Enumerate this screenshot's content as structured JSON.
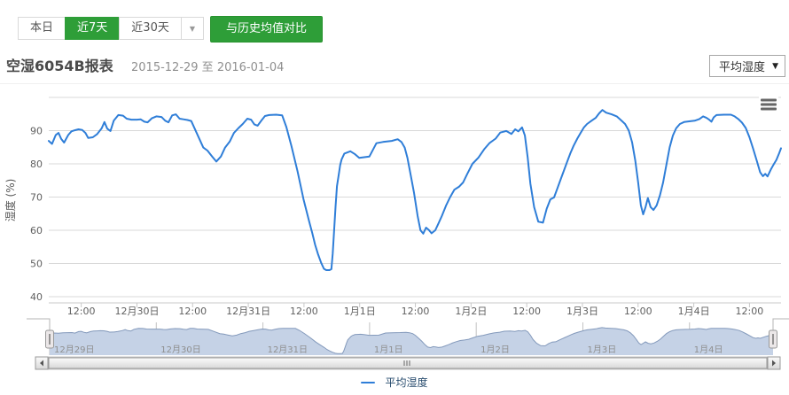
{
  "toolbar": {
    "range_buttons": [
      {
        "label": "本日",
        "active": false
      },
      {
        "label": "近7天",
        "active": true
      },
      {
        "label": "近30天",
        "active": false
      }
    ],
    "dropdown_caret": "▼",
    "compare_button": "与历史均值对比"
  },
  "header": {
    "title": "空湿6054B报表",
    "date_range": "2015-12-29 至 2016-01-04",
    "metric_select": {
      "value": "平均湿度",
      "caret": "▼"
    }
  },
  "icons": {
    "export_menu": "hamburger-bars",
    "scroll_left_arrow": "left-triangle",
    "scroll_right_arrow": "right-triangle"
  },
  "colors": {
    "accent_green": "#2e9e38",
    "series_line": "#2f7ed8",
    "navigator_fill": "#c5d2e6",
    "navigator_line": "#8399bb",
    "grid": "#d8d8d8",
    "axis_line": "#c8c8c8",
    "axis_label": "#606060",
    "legend_text": "#274b6d"
  },
  "chart": {
    "y_axis_title": "湿度 (%)",
    "y_ticks": [
      90,
      80,
      70,
      60,
      50,
      40
    ],
    "y_grid_top_value": 100,
    "x_labels": [
      "12:00",
      "12月30日",
      "12:00",
      "12月31日",
      "12:00",
      "1月1日",
      "12:00",
      "1月2日",
      "12:00",
      "1月3日",
      "12:00",
      "1月4日",
      "12:00"
    ],
    "navigator_labels": [
      "12月29日",
      "12月30日",
      "12月31日",
      "1月1日",
      "1月2日",
      "1月3日",
      "1月4日"
    ],
    "legend": {
      "label": "平均湿度"
    }
  },
  "chart_data": {
    "type": "line",
    "title": "空湿6054B报表",
    "ylabel": "湿度 (%)",
    "ylim": [
      40,
      100
    ],
    "yticks": [
      40,
      50,
      60,
      70,
      80,
      90
    ],
    "x_unit": "hours since 2015-12-29 00:00",
    "x_range": "2015-12-29 至 2016-01-04",
    "xtick_every_hours": 12,
    "grid": true,
    "legend_position": "bottom",
    "navigator": true,
    "series": [
      {
        "name": "平均湿度",
        "color": "#2f7ed8",
        "points": [
          [
            0,
            85.5
          ],
          [
            1,
            86.2
          ],
          [
            2,
            85.8
          ],
          [
            3,
            86.5
          ],
          [
            4,
            86.8
          ],
          [
            5,
            86.9
          ],
          [
            5.7,
            86.0
          ],
          [
            6.5,
            88.7
          ],
          [
            7.1,
            89.3
          ],
          [
            7.7,
            87.5
          ],
          [
            8.3,
            86.4
          ],
          [
            9.2,
            88.7
          ],
          [
            9.9,
            89.8
          ],
          [
            10.6,
            90.1
          ],
          [
            11.4,
            90.4
          ],
          [
            12.2,
            90.2
          ],
          [
            12.9,
            89.3
          ],
          [
            13.5,
            87.8
          ],
          [
            14.5,
            88.0
          ],
          [
            15.4,
            88.9
          ],
          [
            16.4,
            90.7
          ],
          [
            17.0,
            92.6
          ],
          [
            17.6,
            90.6
          ],
          [
            18.3,
            89.9
          ],
          [
            19.0,
            93.0
          ],
          [
            20.0,
            94.7
          ],
          [
            21.0,
            94.5
          ],
          [
            21.8,
            93.6
          ],
          [
            22.8,
            93.3
          ],
          [
            24.0,
            93.3
          ],
          [
            24.8,
            93.4
          ],
          [
            25.6,
            92.7
          ],
          [
            26.3,
            92.5
          ],
          [
            27.2,
            93.7
          ],
          [
            28.2,
            94.3
          ],
          [
            29.3,
            94.1
          ],
          [
            30.1,
            93.0
          ],
          [
            30.8,
            92.5
          ],
          [
            31.6,
            94.6
          ],
          [
            32.4,
            94.9
          ],
          [
            33.2,
            93.6
          ],
          [
            34.0,
            93.4
          ],
          [
            34.9,
            93.2
          ],
          [
            35.7,
            92.9
          ],
          [
            37.0,
            88.9
          ],
          [
            38.3,
            84.9
          ],
          [
            39.2,
            84.0
          ],
          [
            40.2,
            82.2
          ],
          [
            41.1,
            80.7
          ],
          [
            42.1,
            82.2
          ],
          [
            43.0,
            84.9
          ],
          [
            44.0,
            86.7
          ],
          [
            44.9,
            89.3
          ],
          [
            45.9,
            90.8
          ],
          [
            46.8,
            92.0
          ],
          [
            47.8,
            93.6
          ],
          [
            48.6,
            93.3
          ],
          [
            49.3,
            91.9
          ],
          [
            50.0,
            91.5
          ],
          [
            50.8,
            93.0
          ],
          [
            51.6,
            94.4
          ],
          [
            52.5,
            94.7
          ],
          [
            54.0,
            94.8
          ],
          [
            55.3,
            94.6
          ],
          [
            56.2,
            91.1
          ],
          [
            57.3,
            85.3
          ],
          [
            58.6,
            77.8
          ],
          [
            59.9,
            69.3
          ],
          [
            61.1,
            62.7
          ],
          [
            61.8,
            59.1
          ],
          [
            62.4,
            55.6
          ],
          [
            63.0,
            52.9
          ],
          [
            63.7,
            50.2
          ],
          [
            64.3,
            48.4
          ],
          [
            64.8,
            48.0
          ],
          [
            65.5,
            48.0
          ],
          [
            65.9,
            48.3
          ],
          [
            66.2,
            52.9
          ],
          [
            66.5,
            60.0
          ],
          [
            66.8,
            67.1
          ],
          [
            67.1,
            73.3
          ],
          [
            67.5,
            76.9
          ],
          [
            67.8,
            79.6
          ],
          [
            68.1,
            81.3
          ],
          [
            68.7,
            83.1
          ],
          [
            70.0,
            83.8
          ],
          [
            70.9,
            83.0
          ],
          [
            71.9,
            81.8
          ],
          [
            73.0,
            82.0
          ],
          [
            74.1,
            82.2
          ],
          [
            75.6,
            86.2
          ],
          [
            77.0,
            86.6
          ],
          [
            78.9,
            86.9
          ],
          [
            80.2,
            87.4
          ],
          [
            81.0,
            86.6
          ],
          [
            81.7,
            84.9
          ],
          [
            82.3,
            81.8
          ],
          [
            83.0,
            76.6
          ],
          [
            83.7,
            71.3
          ],
          [
            84.5,
            64.3
          ],
          [
            85.1,
            60.0
          ],
          [
            85.7,
            59.0
          ],
          [
            86.3,
            60.8
          ],
          [
            86.9,
            60.1
          ],
          [
            87.5,
            59.1
          ],
          [
            88.3,
            60.0
          ],
          [
            89.0,
            62.1
          ],
          [
            89.7,
            64.3
          ],
          [
            90.6,
            67.4
          ],
          [
            91.5,
            70.0
          ],
          [
            92.4,
            72.2
          ],
          [
            93.4,
            73.1
          ],
          [
            94.3,
            74.4
          ],
          [
            95.2,
            77.0
          ],
          [
            96.3,
            80.0
          ],
          [
            97.6,
            81.9
          ],
          [
            98.9,
            84.5
          ],
          [
            100.0,
            86.3
          ],
          [
            101.3,
            87.6
          ],
          [
            102.3,
            89.4
          ],
          [
            103.6,
            89.9
          ],
          [
            104.7,
            89.0
          ],
          [
            105.5,
            90.4
          ],
          [
            106.2,
            89.8
          ],
          [
            107.0,
            91.0
          ],
          [
            107.6,
            88.5
          ],
          [
            108.2,
            82.0
          ],
          [
            108.8,
            74.0
          ],
          [
            109.6,
            67.0
          ],
          [
            110.5,
            62.6
          ],
          [
            111.5,
            62.3
          ],
          [
            112.3,
            66.5
          ],
          [
            113.1,
            69.3
          ],
          [
            113.9,
            69.9
          ],
          [
            114.6,
            72.6
          ],
          [
            115.3,
            75.3
          ],
          [
            116.0,
            77.9
          ],
          [
            116.7,
            80.6
          ],
          [
            117.4,
            83.2
          ],
          [
            118.1,
            85.4
          ],
          [
            118.9,
            87.6
          ],
          [
            119.6,
            89.3
          ],
          [
            120.3,
            90.9
          ],
          [
            121.0,
            92.0
          ],
          [
            121.9,
            92.9
          ],
          [
            122.9,
            93.9
          ],
          [
            123.6,
            95.2
          ],
          [
            124.3,
            96.2
          ],
          [
            125.1,
            95.4
          ],
          [
            126.3,
            94.9
          ],
          [
            127.4,
            94.3
          ],
          [
            128.5,
            92.9
          ],
          [
            129.2,
            92.0
          ],
          [
            130.0,
            90.0
          ],
          [
            130.7,
            86.5
          ],
          [
            131.4,
            81.0
          ],
          [
            132.0,
            74.5
          ],
          [
            132.6,
            67.5
          ],
          [
            133.1,
            64.8
          ],
          [
            133.6,
            67.0
          ],
          [
            134.1,
            69.7
          ],
          [
            134.7,
            67.0
          ],
          [
            135.3,
            66.1
          ],
          [
            136.0,
            67.5
          ],
          [
            136.7,
            70.5
          ],
          [
            137.4,
            74.4
          ],
          [
            138.1,
            79.7
          ],
          [
            138.8,
            85.0
          ],
          [
            139.5,
            88.5
          ],
          [
            140.2,
            90.7
          ],
          [
            141.0,
            92.0
          ],
          [
            141.9,
            92.6
          ],
          [
            143.0,
            92.8
          ],
          [
            144.2,
            93.0
          ],
          [
            145.2,
            93.5
          ],
          [
            146.0,
            94.3
          ],
          [
            146.7,
            93.9
          ],
          [
            147.3,
            93.3
          ],
          [
            147.8,
            92.7
          ],
          [
            148.3,
            94.0
          ],
          [
            148.9,
            94.7
          ],
          [
            150.5,
            94.8
          ],
          [
            152.0,
            94.8
          ],
          [
            152.8,
            94.3
          ],
          [
            153.6,
            93.5
          ],
          [
            154.4,
            92.4
          ],
          [
            155.2,
            90.8
          ],
          [
            156.0,
            88.0
          ],
          [
            156.8,
            84.5
          ],
          [
            157.6,
            80.8
          ],
          [
            158.3,
            77.5
          ],
          [
            158.9,
            76.3
          ],
          [
            159.4,
            77.0
          ],
          [
            159.9,
            76.2
          ],
          [
            160.6,
            78.3
          ],
          [
            161.2,
            79.8
          ],
          [
            161.8,
            81.2
          ],
          [
            162.4,
            83.2
          ],
          [
            162.8,
            84.7
          ]
        ]
      }
    ]
  }
}
